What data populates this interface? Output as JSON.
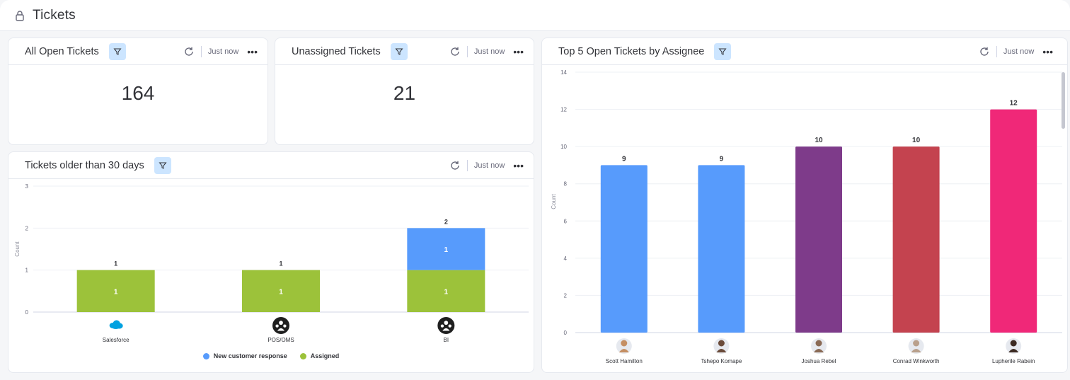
{
  "page": {
    "title": "Tickets",
    "lock_icon": "lock-icon"
  },
  "colors": {
    "blue": "#579bfc",
    "green": "#9cc23a",
    "purple": "#7e3b8a",
    "red": "#c4434f",
    "pink": "#f02878",
    "filter_bg": "#cce5ff"
  },
  "widgets": {
    "all_open": {
      "title": "All Open Tickets",
      "updated": "Just now",
      "value": "164"
    },
    "unassigned": {
      "title": "Unassigned Tickets",
      "updated": "Just now",
      "value": "21"
    },
    "older": {
      "title": "Tickets older than 30 days",
      "updated": "Just now"
    },
    "top5": {
      "title": "Top 5 Open Tickets by Assignee",
      "updated": "Just now"
    }
  },
  "chart_data": [
    {
      "id": "older",
      "type": "bar",
      "stacked": true,
      "categories": [
        "Salesforce",
        "POS/OMS",
        "BI"
      ],
      "category_icons": [
        "salesforce-logo-icon",
        "group-icon",
        "group-icon"
      ],
      "series": [
        {
          "name": "Assigned",
          "color": "#9cc23a",
          "values": [
            1,
            1,
            1
          ]
        },
        {
          "name": "New customer response",
          "color": "#579bfc",
          "values": [
            0,
            0,
            1
          ]
        }
      ],
      "totals": [
        1,
        1,
        2
      ],
      "ylabel": "Count",
      "ylim": [
        0,
        3
      ],
      "yticks": [
        0,
        1,
        2,
        3
      ],
      "legend": {
        "position": "bottom",
        "entries": [
          "New customer response",
          "Assigned"
        ]
      },
      "grid": true
    },
    {
      "id": "top5",
      "type": "bar",
      "categories": [
        "Scott Hamilton",
        "Tshepo Komape",
        "Joshua Rebel",
        "Conrad Winkworth",
        "Lupherile Rabein"
      ],
      "values": [
        9,
        9,
        10,
        10,
        12
      ],
      "colors": [
        "#579bfc",
        "#579bfc",
        "#7e3b8a",
        "#c4434f",
        "#f02878"
      ],
      "avatar_tones": [
        "#c58f63",
        "#6b4b3a",
        "#8a6a55",
        "#b9a08c",
        "#3c2a22"
      ],
      "ylabel": "Count",
      "ylim": [
        0,
        14
      ],
      "yticks": [
        0,
        2,
        4,
        6,
        8,
        10,
        12,
        14
      ],
      "grid": true
    }
  ]
}
